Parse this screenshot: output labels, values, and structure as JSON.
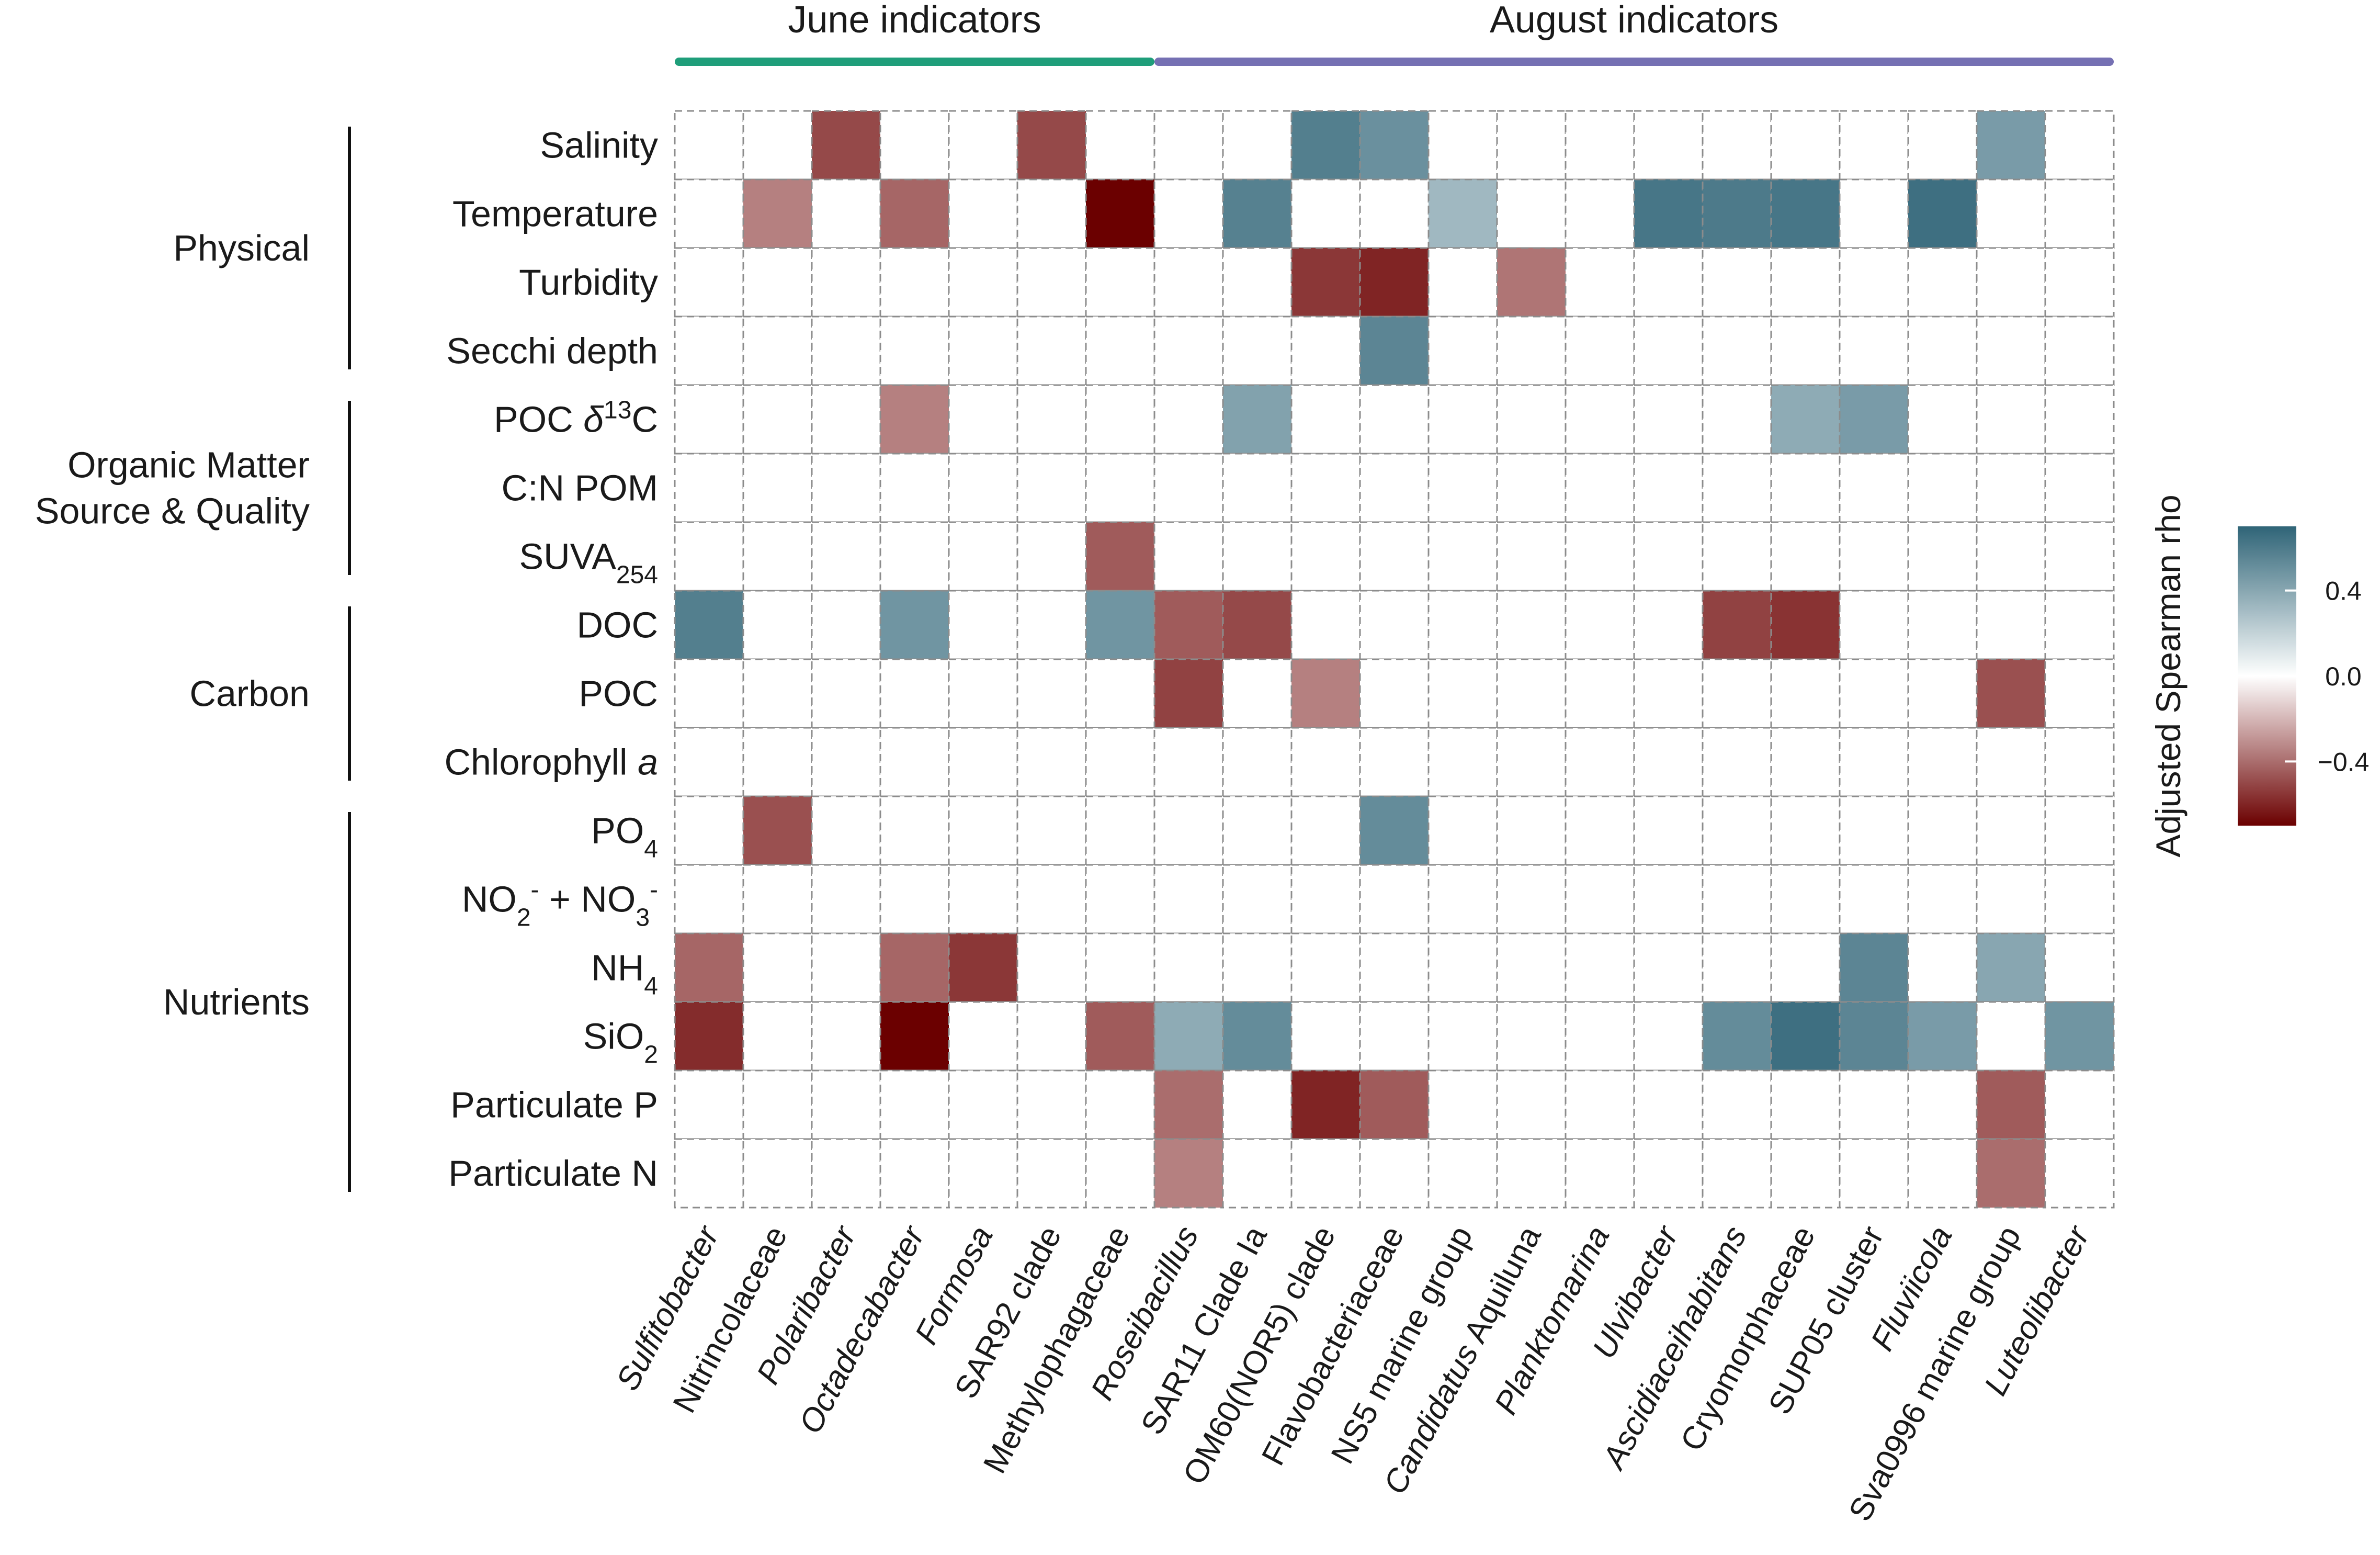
{
  "chart_data": {
    "type": "heatmap",
    "colorbar_title": "Adjusted Spearman rho",
    "colorbar_ticks": [
      {
        "value": 0.4,
        "label": "0.4"
      },
      {
        "value": 0.0,
        "label": "0.0"
      },
      {
        "value": -0.4,
        "label": "−0.4"
      }
    ],
    "color_range": [
      -0.7,
      0.7
    ],
    "colors": {
      "negative": "#6b0000",
      "zero": "#ffffff",
      "positive": "#2f6477",
      "june_bar": "#1f9e7a",
      "august_bar": "#7570b3"
    },
    "column_groups": [
      {
        "label": "June indicators",
        "start": 0,
        "end": 6,
        "color": "#1f9e7a"
      },
      {
        "label": "August indicators",
        "start": 7,
        "end": 20,
        "color": "#7570b3"
      }
    ],
    "row_groups": [
      {
        "label": "Physical",
        "start": 0,
        "end": 3
      },
      {
        "label": "Organic Matter\nSource & Quality",
        "start": 4,
        "end": 6
      },
      {
        "label": "Carbon",
        "start": 7,
        "end": 9
      },
      {
        "label": "Nutrients",
        "start": 10,
        "end": 15
      }
    ],
    "rows": [
      {
        "parts": [
          {
            "t": "Salinity"
          }
        ]
      },
      {
        "parts": [
          {
            "t": "Temperature"
          }
        ]
      },
      {
        "parts": [
          {
            "t": "Turbidity"
          }
        ]
      },
      {
        "parts": [
          {
            "t": "Secchi depth"
          }
        ]
      },
      {
        "parts": [
          {
            "t": "POC "
          },
          {
            "t": "δ",
            "i": true
          },
          {
            "t": "13",
            "sup": true
          },
          {
            "t": "C"
          }
        ]
      },
      {
        "parts": [
          {
            "t": "C:N POM"
          }
        ]
      },
      {
        "parts": [
          {
            "t": "SUVA"
          },
          {
            "t": "254",
            "sub": true
          }
        ]
      },
      {
        "parts": [
          {
            "t": "DOC"
          }
        ]
      },
      {
        "parts": [
          {
            "t": "POC"
          }
        ]
      },
      {
        "parts": [
          {
            "t": "Chlorophyll "
          },
          {
            "t": "a",
            "i": true
          }
        ]
      },
      {
        "parts": [
          {
            "t": "PO"
          },
          {
            "t": "4",
            "sub": true
          }
        ]
      },
      {
        "parts": [
          {
            "t": "NO"
          },
          {
            "t": "2",
            "sub": true
          },
          {
            "t": "-",
            "sup": true
          },
          {
            "t": " + NO"
          },
          {
            "t": "3",
            "sub": true
          },
          {
            "t": "-",
            "sup": true
          }
        ]
      },
      {
        "parts": [
          {
            "t": "NH"
          },
          {
            "t": "4",
            "sub": true
          }
        ]
      },
      {
        "parts": [
          {
            "t": "SiO"
          },
          {
            "t": "2",
            "sub": true
          }
        ]
      },
      {
        "parts": [
          {
            "t": "Particulate P"
          }
        ]
      },
      {
        "parts": [
          {
            "t": "Particulate N"
          }
        ]
      }
    ],
    "columns": [
      {
        "parts": [
          {
            "t": "Sulfitobacter",
            "i": true
          }
        ]
      },
      {
        "parts": [
          {
            "t": "Nitrincolaceae"
          }
        ]
      },
      {
        "parts": [
          {
            "t": "Polaribacter",
            "i": true
          }
        ]
      },
      {
        "parts": [
          {
            "t": "Octadecabacter",
            "i": true
          }
        ]
      },
      {
        "parts": [
          {
            "t": "Formosa",
            "i": true
          }
        ]
      },
      {
        "parts": [
          {
            "t": "SAR92 clade"
          }
        ]
      },
      {
        "parts": [
          {
            "t": "Methylophagaceae"
          }
        ]
      },
      {
        "parts": [
          {
            "t": "Roseibacillus",
            "i": true
          }
        ]
      },
      {
        "parts": [
          {
            "t": "SAR11 Clade Ia"
          }
        ]
      },
      {
        "parts": [
          {
            "t": "OM60(NOR5) clade"
          }
        ]
      },
      {
        "parts": [
          {
            "t": "Flavobacteriaceae"
          }
        ]
      },
      {
        "parts": [
          {
            "t": "NS5 marine group"
          }
        ]
      },
      {
        "parts": [
          {
            "t": "Candidatus",
            "i": true
          },
          {
            "t": " Aquiluna"
          }
        ]
      },
      {
        "parts": [
          {
            "t": "Planktomarina",
            "i": true
          }
        ]
      },
      {
        "parts": [
          {
            "t": "Ulvibacter",
            "i": true
          }
        ]
      },
      {
        "parts": [
          {
            "t": "Ascidiaceihabitans",
            "i": true
          }
        ]
      },
      {
        "parts": [
          {
            "t": "Cryomorphaceae"
          }
        ]
      },
      {
        "parts": [
          {
            "t": "SUP05 cluster"
          }
        ]
      },
      {
        "parts": [
          {
            "t": "Fluviicola",
            "i": true
          }
        ]
      },
      {
        "parts": [
          {
            "t": "Sva0996 marine group"
          }
        ]
      },
      {
        "parts": [
          {
            "t": "Luteolibacter",
            "i": true
          }
        ]
      }
    ],
    "values": [
      [
        0,
        0,
        -0.5,
        0,
        0,
        -0.5,
        0,
        0,
        0,
        0.58,
        0.5,
        0,
        0,
        0,
        0,
        0,
        0,
        0,
        0,
        0.45,
        0
      ],
      [
        0,
        -0.35,
        0,
        -0.42,
        0,
        0,
        -0.7,
        0,
        0.57,
        0,
        0,
        0.32,
        0,
        0,
        0.62,
        0.6,
        0.62,
        0,
        0.65,
        0,
        0
      ],
      [
        0,
        0,
        0,
        0,
        0,
        0,
        0,
        0,
        0,
        -0.55,
        -0.6,
        0,
        -0.38,
        0,
        0,
        0,
        0,
        0,
        0,
        0,
        0
      ],
      [
        0,
        0,
        0,
        0,
        0,
        0,
        0,
        0,
        0,
        0,
        0.55,
        0,
        0,
        0,
        0,
        0,
        0,
        0,
        0,
        0,
        0
      ],
      [
        0,
        0,
        0,
        -0.35,
        0,
        0,
        0,
        0,
        0.42,
        0,
        0,
        0,
        0,
        0,
        0,
        0,
        0.38,
        0.45,
        0,
        0,
        0
      ],
      [
        0,
        0,
        0,
        0,
        0,
        0,
        0,
        0,
        0,
        0,
        0,
        0,
        0,
        0,
        0,
        0,
        0,
        0,
        0,
        0,
        0
      ],
      [
        0,
        0,
        0,
        0,
        0,
        0,
        -0.45,
        0,
        0,
        0,
        0,
        0,
        0,
        0,
        0,
        0,
        0,
        0,
        0,
        0,
        0
      ],
      [
        0.58,
        0,
        0,
        0.48,
        0,
        0,
        0.48,
        -0.45,
        -0.5,
        0,
        0,
        0,
        0,
        0,
        0,
        -0.52,
        -0.56,
        0,
        0,
        0,
        0
      ],
      [
        0,
        0,
        0,
        0,
        0,
        0,
        0,
        -0.52,
        0,
        -0.35,
        0,
        0,
        0,
        0,
        0,
        0,
        0,
        0,
        0,
        -0.48,
        0
      ],
      [
        0,
        0,
        0,
        0,
        0,
        0,
        0,
        0,
        0,
        0,
        0,
        0,
        0,
        0,
        0,
        0,
        0,
        0,
        0,
        0,
        0
      ],
      [
        0,
        -0.48,
        0,
        0,
        0,
        0,
        0,
        0,
        0,
        0,
        0.52,
        0,
        0,
        0,
        0,
        0,
        0,
        0,
        0,
        0,
        0
      ],
      [
        0,
        0,
        0,
        0,
        0,
        0,
        0,
        0,
        0,
        0,
        0,
        0,
        0,
        0,
        0,
        0,
        0,
        0,
        0,
        0,
        0
      ],
      [
        -0.42,
        0,
        0,
        -0.42,
        -0.55,
        0,
        0,
        0,
        0,
        0,
        0,
        0,
        0,
        0,
        0,
        0,
        0,
        0.55,
        0,
        0.4,
        0
      ],
      [
        -0.58,
        0,
        0,
        -0.7,
        0,
        0,
        -0.45,
        0.38,
        0.52,
        0,
        0,
        0,
        0,
        0,
        0,
        0.52,
        0.65,
        0.55,
        0.45,
        0,
        0.48
      ],
      [
        0,
        0,
        0,
        0,
        0,
        0,
        0,
        -0.4,
        0,
        -0.6,
        -0.45,
        0,
        0,
        0,
        0,
        0,
        0,
        0,
        0,
        -0.45,
        0
      ],
      [
        0,
        0,
        0,
        0,
        0,
        0,
        0,
        -0.35,
        0,
        0,
        0,
        0,
        0,
        0,
        0,
        0,
        0,
        0,
        0,
        -0.4,
        0
      ]
    ]
  }
}
